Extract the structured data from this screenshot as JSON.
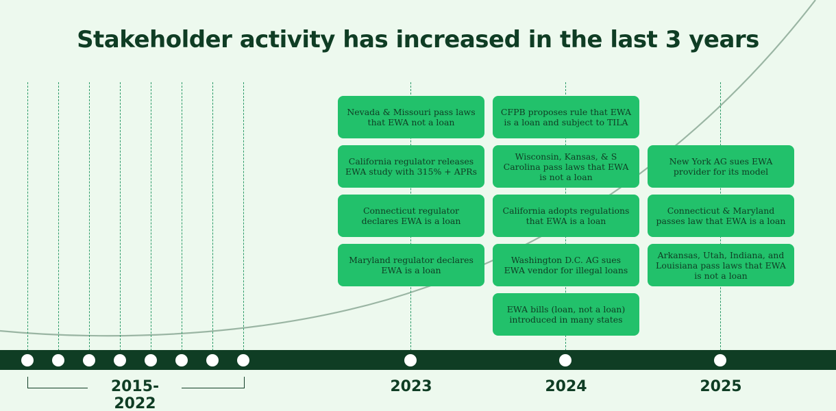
{
  "title": "Stakeholder activity has increased in the last 3 years",
  "colors": {
    "background": "#edf9ee",
    "dark_green": "#0f3d24",
    "card_green": "#22c16b",
    "dashed_line": "#2b9a68",
    "curve": "#9ab5a3"
  },
  "years": {
    "range_label": "2015-2022",
    "y2023": "2023",
    "y2024": "2024",
    "y2025": "2025"
  },
  "events_2023": [
    "Nevada & Missouri pass laws that EWA not a loan",
    "California regulator releases EWA study with 315% + APRs",
    "Connecticut regulator declares EWA is a loan",
    "Maryland regulator declares EWA is a loan"
  ],
  "events_2024": [
    "CFPB proposes rule that EWA is a loan and subject to TILA",
    "Wisconsin, Kansas, & S Carolina pass laws that EWA is not a loan",
    "California adopts regulations that EWA is a loan",
    "Washington D.C. AG sues EWA vendor for illegal loans",
    "EWA bills (loan, not a loan) introduced in many states"
  ],
  "events_2025": [
    "New York AG sues EWA provider for its model",
    "Connecticut & Maryland passes law that EWA is a loan",
    "Arkansas, Utah, Indiana, and Louisiana pass laws that EWA is not a loan"
  ]
}
